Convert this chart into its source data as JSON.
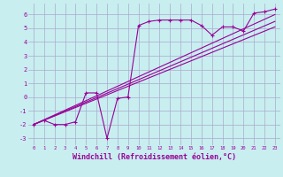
{
  "bg_color": "#c8eef0",
  "grid_color": "#aaaacc",
  "line_color": "#990099",
  "xlabel": "Windchill (Refroidissement éolien,°C)",
  "xlabel_fontsize": 6,
  "ylabel_values": [
    -3,
    -2,
    -1,
    0,
    1,
    2,
    3,
    4,
    5,
    6
  ],
  "xlim": [
    -0.5,
    23.5
  ],
  "ylim": [
    -3.5,
    6.8
  ],
  "xtick_labels": [
    "0",
    "1",
    "2",
    "3",
    "4",
    "5",
    "6",
    "7",
    "8",
    "9",
    "10",
    "11",
    "12",
    "13",
    "14",
    "15",
    "16",
    "17",
    "18",
    "19",
    "20",
    "21",
    "22",
    "23"
  ],
  "series1_x": [
    0,
    1,
    2,
    3,
    4,
    5,
    6,
    7,
    8,
    9,
    10,
    11,
    12,
    13,
    14,
    15,
    16,
    17,
    18,
    19,
    20,
    21,
    22,
    23
  ],
  "series1_y": [
    -2.0,
    -1.7,
    -2.0,
    -2.0,
    -1.8,
    0.3,
    0.3,
    -3.0,
    -0.1,
    0.0,
    5.2,
    5.5,
    5.6,
    5.6,
    5.6,
    5.6,
    5.2,
    4.5,
    5.1,
    5.1,
    4.8,
    6.1,
    6.2,
    6.4
  ],
  "series2_x": [
    0,
    23
  ],
  "series2_y": [
    -2.0,
    5.1
  ],
  "series3_x": [
    0,
    23
  ],
  "series3_y": [
    -2.0,
    5.5
  ],
  "series4_x": [
    0,
    23
  ],
  "series4_y": [
    -2.0,
    6.0
  ]
}
